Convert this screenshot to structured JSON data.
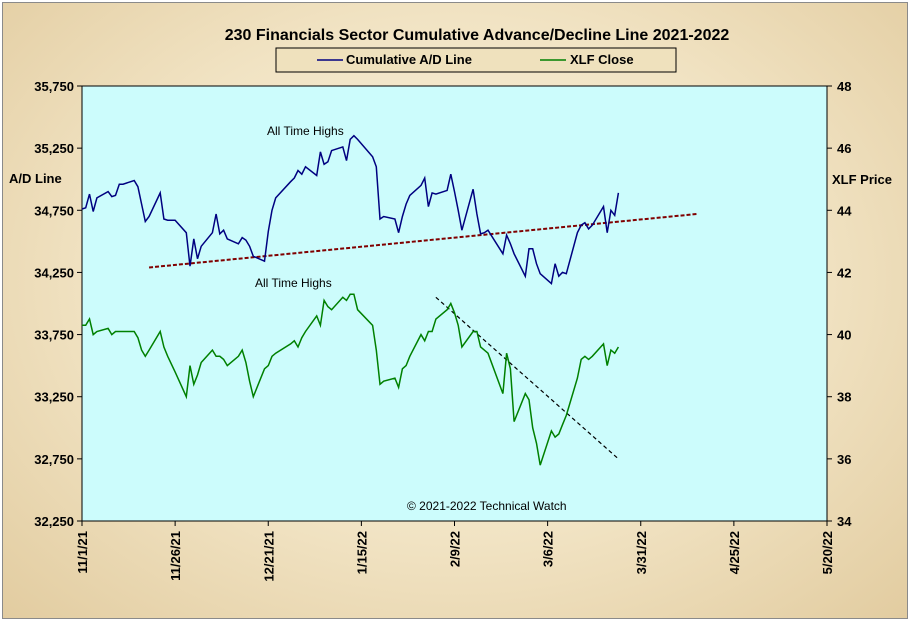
{
  "chart_data": {
    "type": "line",
    "title": "230 Financials  Sector Cumulative  Advance/Decline  Line  2021-2022",
    "ylabel": "A/D Line",
    "y2label": "XLF Price",
    "ylim": [
      32250,
      35750
    ],
    "y2lim": [
      34,
      48
    ],
    "yticks": [
      "35,750",
      "35,250",
      "34,750",
      "34,250",
      "33,750",
      "33,250",
      "32,750",
      "32,250"
    ],
    "y2ticks": [
      "48",
      "46",
      "44",
      "42",
      "40",
      "38",
      "36",
      "34"
    ],
    "xticks": [
      "11/1/21",
      "11/26/21",
      "12/21/21",
      "1/15/22",
      "2/9/22",
      "3/6/22",
      "3/31/22",
      "4/25/22",
      "5/20/22"
    ],
    "xlim": [
      "2021-11-01",
      "2022-05-20"
    ],
    "grid": false,
    "legend_position": "top-center",
    "plot_background": "#ccfcfc",
    "copyright": "© 2021-2022  Technical Watch",
    "annotations": [
      {
        "text": "All Time Highs",
        "color": "#800080"
      },
      {
        "text": "All Time Highs",
        "color": "#808080"
      }
    ],
    "series": [
      {
        "name": "Cumulative A/D Line",
        "axis": "left",
        "color": "#000080",
        "x": [
          "2021-11-01",
          "2021-11-02",
          "2021-11-03",
          "2021-11-04",
          "2021-11-05",
          "2021-11-08",
          "2021-11-09",
          "2021-11-10",
          "2021-11-11",
          "2021-11-12",
          "2021-11-15",
          "2021-11-16",
          "2021-11-17",
          "2021-11-18",
          "2021-11-19",
          "2021-11-22",
          "2021-11-23",
          "2021-11-24",
          "2021-11-26",
          "2021-11-29",
          "2021-11-30",
          "2021-12-01",
          "2021-12-02",
          "2021-12-03",
          "2021-12-06",
          "2021-12-07",
          "2021-12-08",
          "2021-12-09",
          "2021-12-10",
          "2021-12-13",
          "2021-12-14",
          "2021-12-15",
          "2021-12-16",
          "2021-12-17",
          "2021-12-20",
          "2021-12-21",
          "2021-12-22",
          "2021-12-23",
          "2021-12-27",
          "2021-12-28",
          "2021-12-29",
          "2021-12-30",
          "2021-12-31",
          "2022-01-03",
          "2022-01-04",
          "2022-01-05",
          "2022-01-06",
          "2022-01-07",
          "2022-01-10",
          "2022-01-11",
          "2022-01-12",
          "2022-01-13",
          "2022-01-14",
          "2022-01-18",
          "2022-01-19",
          "2022-01-20",
          "2022-01-21",
          "2022-01-24",
          "2022-01-25",
          "2022-01-26",
          "2022-01-27",
          "2022-01-28",
          "2022-01-31",
          "2022-02-01",
          "2022-02-02",
          "2022-02-03",
          "2022-02-04",
          "2022-02-07",
          "2022-02-08",
          "2022-02-09",
          "2022-02-10",
          "2022-02-11",
          "2022-02-14",
          "2022-02-15",
          "2022-02-16",
          "2022-02-17",
          "2022-02-18",
          "2022-02-22",
          "2022-02-23",
          "2022-02-24",
          "2022-02-25",
          "2022-02-28",
          "2022-03-01",
          "2022-03-02",
          "2022-03-03",
          "2022-03-04",
          "2022-03-07",
          "2022-03-08",
          "2022-03-09",
          "2022-03-10",
          "2022-03-11",
          "2022-03-14",
          "2022-03-15",
          "2022-03-16",
          "2022-03-17",
          "2022-03-18",
          "2022-03-21",
          "2022-03-22",
          "2022-03-23",
          "2022-03-24",
          "2022-03-25"
        ],
        "values": [
          34760,
          34770,
          34880,
          34740,
          34850,
          34900,
          34860,
          34870,
          34960,
          34960,
          34990,
          34940,
          34800,
          34660,
          34700,
          34890,
          34680,
          34670,
          34670,
          34570,
          34300,
          34520,
          34360,
          34460,
          34570,
          34720,
          34560,
          34590,
          34520,
          34480,
          34530,
          34510,
          34460,
          34380,
          34340,
          34580,
          34750,
          34850,
          34980,
          35010,
          35070,
          35040,
          35100,
          35030,
          35220,
          35120,
          35140,
          35230,
          35260,
          35150,
          35320,
          35350,
          35320,
          35180,
          35100,
          34680,
          34700,
          34680,
          34570,
          34700,
          34800,
          34870,
          34950,
          35010,
          34780,
          34890,
          34880,
          34910,
          35040,
          34900,
          34750,
          34590,
          34920,
          34720,
          34560,
          34570,
          34590,
          34400,
          34550,
          34480,
          34400,
          34220,
          34440,
          34440,
          34320,
          34240,
          34160,
          34320,
          34220,
          34250,
          34240,
          34570,
          34630,
          34650,
          34600,
          34630,
          34780,
          34570,
          34750,
          34710,
          34890
        ]
      },
      {
        "name": "XLF Close",
        "axis": "right",
        "color": "#008000",
        "x": [
          "2021-11-01",
          "2021-11-02",
          "2021-11-03",
          "2021-11-04",
          "2021-11-05",
          "2021-11-08",
          "2021-11-09",
          "2021-11-10",
          "2021-11-11",
          "2021-11-12",
          "2021-11-15",
          "2021-11-16",
          "2021-11-17",
          "2021-11-18",
          "2021-11-19",
          "2021-11-22",
          "2021-11-23",
          "2021-11-24",
          "2021-11-26",
          "2021-11-29",
          "2021-11-30",
          "2021-12-01",
          "2021-12-02",
          "2021-12-03",
          "2021-12-06",
          "2021-12-07",
          "2021-12-08",
          "2021-12-09",
          "2021-12-10",
          "2021-12-13",
          "2021-12-14",
          "2021-12-15",
          "2021-12-16",
          "2021-12-17",
          "2021-12-20",
          "2021-12-21",
          "2021-12-22",
          "2021-12-23",
          "2021-12-27",
          "2021-12-28",
          "2021-12-29",
          "2021-12-30",
          "2021-12-31",
          "2022-01-03",
          "2022-01-04",
          "2022-01-05",
          "2022-01-06",
          "2022-01-07",
          "2022-01-10",
          "2022-01-11",
          "2022-01-12",
          "2022-01-13",
          "2022-01-14",
          "2022-01-18",
          "2022-01-19",
          "2022-01-20",
          "2022-01-21",
          "2022-01-24",
          "2022-01-25",
          "2022-01-26",
          "2022-01-27",
          "2022-01-28",
          "2022-01-31",
          "2022-02-01",
          "2022-02-02",
          "2022-02-03",
          "2022-02-04",
          "2022-02-07",
          "2022-02-08",
          "2022-02-09",
          "2022-02-10",
          "2022-02-11",
          "2022-02-14",
          "2022-02-15",
          "2022-02-16",
          "2022-02-17",
          "2022-02-18",
          "2022-02-22",
          "2022-02-23",
          "2022-02-24",
          "2022-02-25",
          "2022-02-28",
          "2022-03-01",
          "2022-03-02",
          "2022-03-03",
          "2022-03-04",
          "2022-03-07",
          "2022-03-08",
          "2022-03-09",
          "2022-03-10",
          "2022-03-11",
          "2022-03-14",
          "2022-03-15",
          "2022-03-16",
          "2022-03-17",
          "2022-03-18",
          "2022-03-21",
          "2022-03-22",
          "2022-03-23",
          "2022-03-24",
          "2022-03-25"
        ],
        "values": [
          40.3,
          40.3,
          40.5,
          40.0,
          40.1,
          40.2,
          40.0,
          40.1,
          40.1,
          40.1,
          40.1,
          39.9,
          39.5,
          39.3,
          39.5,
          40.1,
          39.6,
          39.3,
          38.8,
          38.0,
          39.0,
          38.4,
          38.7,
          39.1,
          39.5,
          39.3,
          39.3,
          39.2,
          39.0,
          39.3,
          39.5,
          39.1,
          38.5,
          38.0,
          38.9,
          39.0,
          39.3,
          39.4,
          39.7,
          39.8,
          39.6,
          39.9,
          40.1,
          40.6,
          40.3,
          41.1,
          40.9,
          40.8,
          41.2,
          41.1,
          41.3,
          41.3,
          40.8,
          40.3,
          39.5,
          38.4,
          38.5,
          38.6,
          38.3,
          38.9,
          39.0,
          39.3,
          40.0,
          39.8,
          40.1,
          40.1,
          40.5,
          40.8,
          41.0,
          40.7,
          40.3,
          39.6,
          40.1,
          40.1,
          39.6,
          39.5,
          39.4,
          38.1,
          39.4,
          38.9,
          37.2,
          38.1,
          37.9,
          37.0,
          36.5,
          35.8,
          36.9,
          36.7,
          36.8,
          37.1,
          37.4,
          38.6,
          39.2,
          39.3,
          39.2,
          39.3,
          39.7,
          39.0,
          39.5,
          39.4,
          39.6
        ]
      }
    ],
    "trendlines": [
      {
        "name": "A/D support trendline",
        "axis": "left",
        "style": "dashed",
        "color": "#800000",
        "x": [
          "2021-11-19",
          "2022-04-15"
        ],
        "values": [
          34290,
          34720
        ]
      },
      {
        "name": "XLF resistance trendline",
        "axis": "right",
        "style": "dashed",
        "color": "#000000",
        "x": [
          "2022-02-04",
          "2022-03-25"
        ],
        "values": [
          41.2,
          36.0
        ]
      }
    ]
  }
}
